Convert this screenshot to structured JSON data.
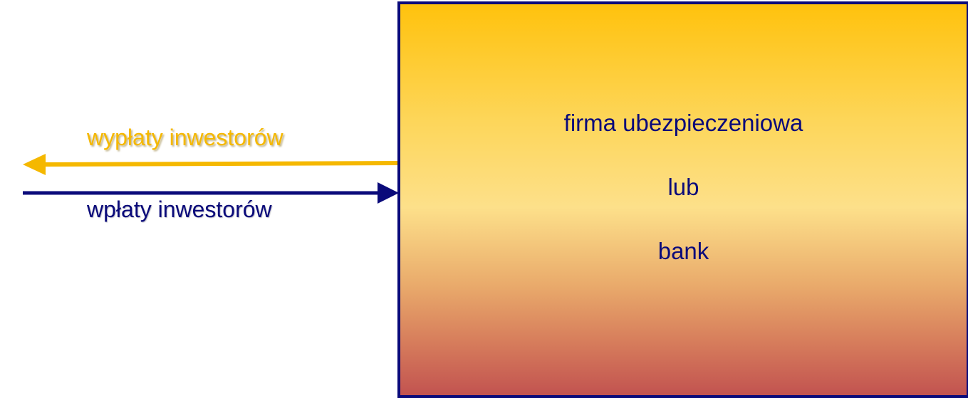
{
  "flows": {
    "outflow_label": "wypłaty inwestorów",
    "inflow_label": "wpłaty inwestorów"
  },
  "institution": {
    "line1": "firma ubezpieczeniowa",
    "line2": "lub",
    "line3": "bank"
  },
  "colors": {
    "outflow": "#f5b800",
    "inflow": "#0a0a7a",
    "box_border": "#0a0a7a",
    "box_text": "#0a0a7a"
  }
}
